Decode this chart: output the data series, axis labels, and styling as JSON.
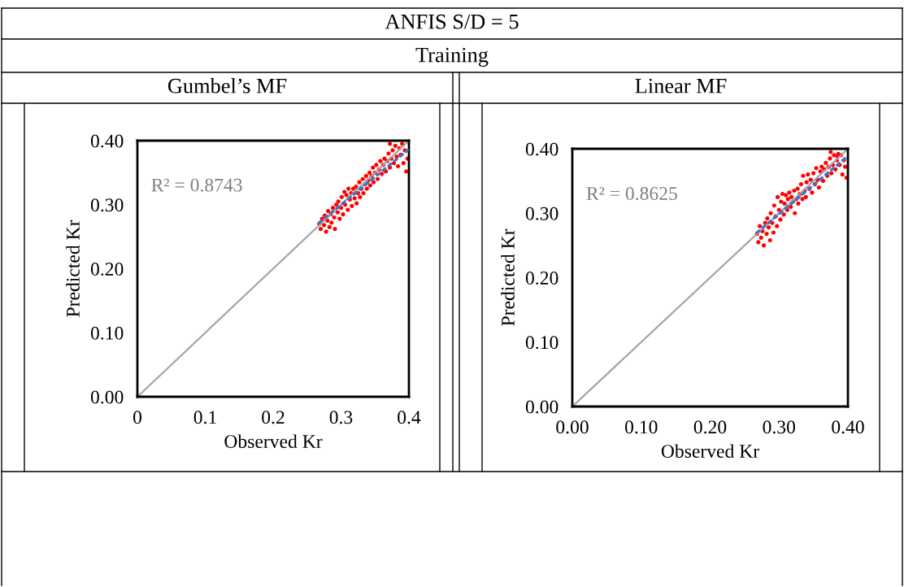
{
  "chart_data": [
    {
      "type": "scatter",
      "title": "Gumbel’s MF",
      "xlabel": "Observed Kr",
      "ylabel": "Predicted Kr",
      "annotations": [
        "ANFIS S/D = 5",
        "Training",
        "R² = 0.8743"
      ],
      "xlim": [
        0,
        0.4
      ],
      "ylim": [
        0,
        0.4
      ],
      "xticks": [
        {
          "value": 0,
          "label": "0"
        },
        {
          "value": 0.1,
          "label": "0.1"
        },
        {
          "value": 0.2,
          "label": "0.2"
        },
        {
          "value": 0.3,
          "label": "0.3"
        },
        {
          "value": 0.4,
          "label": "0.4"
        }
      ],
      "yticks": [
        {
          "value": 0,
          "label": "0.00"
        },
        {
          "value": 0.1,
          "label": "0.10"
        },
        {
          "value": 0.2,
          "label": "0.20"
        },
        {
          "value": 0.3,
          "label": "0.30"
        },
        {
          "value": 0.4,
          "label": "0.40"
        }
      ],
      "grid": false,
      "series": [
        {
          "type": "line",
          "color": "#a5a5a5",
          "line_style": "solid",
          "x": [
            0,
            0.4
          ],
          "values": [
            0,
            0.4
          ]
        },
        {
          "marker": "circle",
          "color": "#ff0000",
          "x": [
            0.268,
            0.27,
            0.272,
            0.275,
            0.276,
            0.278,
            0.28,
            0.281,
            0.283,
            0.285,
            0.286,
            0.288,
            0.29,
            0.291,
            0.293,
            0.295,
            0.296,
            0.298,
            0.3,
            0.301,
            0.303,
            0.305,
            0.306,
            0.308,
            0.31,
            0.311,
            0.313,
            0.315,
            0.316,
            0.318,
            0.32,
            0.322,
            0.323,
            0.325,
            0.327,
            0.328,
            0.33,
            0.332,
            0.333,
            0.335,
            0.337,
            0.338,
            0.34,
            0.342,
            0.343,
            0.345,
            0.347,
            0.348,
            0.35,
            0.352,
            0.354,
            0.356,
            0.358,
            0.36,
            0.362,
            0.364,
            0.366,
            0.368,
            0.37,
            0.372,
            0.374,
            0.376,
            0.378,
            0.38,
            0.382,
            0.384,
            0.386,
            0.388,
            0.39,
            0.392,
            0.394,
            0.396,
            0.398,
            0.372
          ],
          "values": [
            0.27,
            0.262,
            0.278,
            0.268,
            0.283,
            0.258,
            0.275,
            0.29,
            0.265,
            0.285,
            0.272,
            0.295,
            0.28,
            0.262,
            0.3,
            0.288,
            0.305,
            0.278,
            0.295,
            0.312,
            0.285,
            0.32,
            0.3,
            0.315,
            0.292,
            0.325,
            0.308,
            0.318,
            0.298,
            0.325,
            0.31,
            0.328,
            0.302,
            0.318,
            0.335,
            0.312,
            0.325,
            0.34,
            0.318,
            0.332,
            0.345,
            0.325,
            0.338,
            0.35,
            0.33,
            0.345,
            0.358,
            0.335,
            0.35,
            0.362,
            0.34,
            0.355,
            0.368,
            0.348,
            0.362,
            0.372,
            0.352,
            0.368,
            0.38,
            0.358,
            0.372,
            0.385,
            0.365,
            0.392,
            0.375,
            0.36,
            0.388,
            0.378,
            0.395,
            0.365,
            0.385,
            0.352,
            0.372,
            0.395
          ]
        },
        {
          "type": "line",
          "color": "#4472c4",
          "line_style": "dotted",
          "x": [
            0.268,
            0.398
          ],
          "values": [
            0.272,
            0.385
          ]
        }
      ]
    },
    {
      "type": "scatter",
      "title": "Linear MF",
      "xlabel": "Observed Kr",
      "ylabel": "Predicted Kr",
      "annotations": [
        "R² = 0.8625"
      ],
      "xlim": [
        0,
        0.4
      ],
      "ylim": [
        0,
        0.4
      ],
      "xticks": [
        {
          "value": 0,
          "label": "0.00"
        },
        {
          "value": 0.1,
          "label": "0.10"
        },
        {
          "value": 0.2,
          "label": "0.20"
        },
        {
          "value": 0.3,
          "label": "0.30"
        },
        {
          "value": 0.4,
          "label": "0.40"
        }
      ],
      "yticks": [
        {
          "value": 0,
          "label": "0.00"
        },
        {
          "value": 0.1,
          "label": "0.10"
        },
        {
          "value": 0.2,
          "label": "0.20"
        },
        {
          "value": 0.3,
          "label": "0.30"
        },
        {
          "value": 0.4,
          "label": "0.40"
        }
      ],
      "grid": false,
      "series": [
        {
          "type": "line",
          "color": "#a5a5a5",
          "line_style": "solid",
          "x": [
            0,
            0.4
          ],
          "values": [
            0,
            0.4
          ]
        },
        {
          "marker": "circle",
          "color": "#ff0000",
          "x": [
            0.268,
            0.27,
            0.272,
            0.274,
            0.276,
            0.278,
            0.28,
            0.282,
            0.283,
            0.285,
            0.287,
            0.288,
            0.29,
            0.292,
            0.293,
            0.295,
            0.297,
            0.298,
            0.3,
            0.302,
            0.303,
            0.305,
            0.307,
            0.308,
            0.31,
            0.312,
            0.313,
            0.315,
            0.317,
            0.318,
            0.32,
            0.322,
            0.323,
            0.325,
            0.327,
            0.328,
            0.33,
            0.332,
            0.334,
            0.335,
            0.337,
            0.339,
            0.34,
            0.342,
            0.344,
            0.346,
            0.348,
            0.35,
            0.352,
            0.354,
            0.356,
            0.358,
            0.36,
            0.362,
            0.364,
            0.366,
            0.368,
            0.37,
            0.372,
            0.374,
            0.376,
            0.378,
            0.38,
            0.382,
            0.384,
            0.386,
            0.388,
            0.39,
            0.392,
            0.394,
            0.396,
            0.398,
            0.375,
            0.385
          ],
          "values": [
            0.268,
            0.255,
            0.28,
            0.262,
            0.272,
            0.25,
            0.285,
            0.268,
            0.292,
            0.278,
            0.258,
            0.3,
            0.285,
            0.27,
            0.312,
            0.295,
            0.28,
            0.325,
            0.305,
            0.29,
            0.318,
            0.33,
            0.298,
            0.315,
            0.328,
            0.305,
            0.322,
            0.332,
            0.31,
            0.325,
            0.318,
            0.335,
            0.3,
            0.322,
            0.338,
            0.315,
            0.33,
            0.345,
            0.322,
            0.358,
            0.335,
            0.325,
            0.348,
            0.36,
            0.338,
            0.352,
            0.332,
            0.362,
            0.345,
            0.37,
            0.352,
            0.34,
            0.365,
            0.372,
            0.35,
            0.368,
            0.378,
            0.358,
            0.372,
            0.385,
            0.362,
            0.375,
            0.39,
            0.368,
            0.382,
            0.392,
            0.375,
            0.39,
            0.36,
            0.382,
            0.372,
            0.355,
            0.395,
            0.388
          ]
        },
        {
          "type": "line",
          "color": "#4472c4",
          "line_style": "dotted",
          "x": [
            0.268,
            0.398
          ],
          "values": [
            0.27,
            0.387
          ]
        }
      ]
    }
  ]
}
